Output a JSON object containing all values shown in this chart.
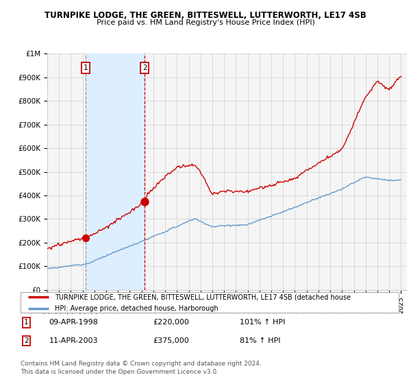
{
  "title1": "TURNPIKE LODGE, THE GREEN, BITTESWELL, LUTTERWORTH, LE17 4SB",
  "title2": "Price paid vs. HM Land Registry's House Price Index (HPI)",
  "sale1_date": "09-APR-1998",
  "sale1_price": 220000,
  "sale1_label": "1",
  "sale1_year": 1998.27,
  "sale1_pct": "101% ↑ HPI",
  "sale2_date": "11-APR-2003",
  "sale2_price": 375000,
  "sale2_label": "2",
  "sale2_year": 2003.27,
  "sale2_pct": "81% ↑ HPI",
  "legend_red": "TURNPIKE LODGE, THE GREEN, BITTESWELL, LUTTERWORTH, LE17 4SB (detached house",
  "legend_blue": "HPI: Average price, detached house, Harborough",
  "footer1": "Contains HM Land Registry data © Crown copyright and database right 2024.",
  "footer2": "This data is licensed under the Open Government Licence v3.0.",
  "red_color": "#cc0000",
  "blue_color": "#6699cc",
  "shade_color": "#ddeeff",
  "background_color": "#ffffff",
  "plot_bg_color": "#f5f5f5",
  "ylim": [
    0,
    1000000
  ],
  "yticks": [
    0,
    100000,
    200000,
    300000,
    400000,
    500000,
    600000,
    700000,
    800000,
    900000,
    1000000
  ],
  "ytick_labels": [
    "£0",
    "£100K",
    "£200K",
    "£300K",
    "£400K",
    "£500K",
    "£600K",
    "£700K",
    "£800K",
    "£900K",
    "£1M"
  ],
  "xlim": [
    1995.0,
    2025.5
  ],
  "xticks": [
    1995,
    1996,
    1997,
    1998,
    1999,
    2000,
    2001,
    2002,
    2003,
    2004,
    2005,
    2006,
    2007,
    2008,
    2009,
    2010,
    2011,
    2012,
    2013,
    2014,
    2015,
    2016,
    2017,
    2018,
    2019,
    2020,
    2021,
    2022,
    2023,
    2024,
    2025
  ]
}
